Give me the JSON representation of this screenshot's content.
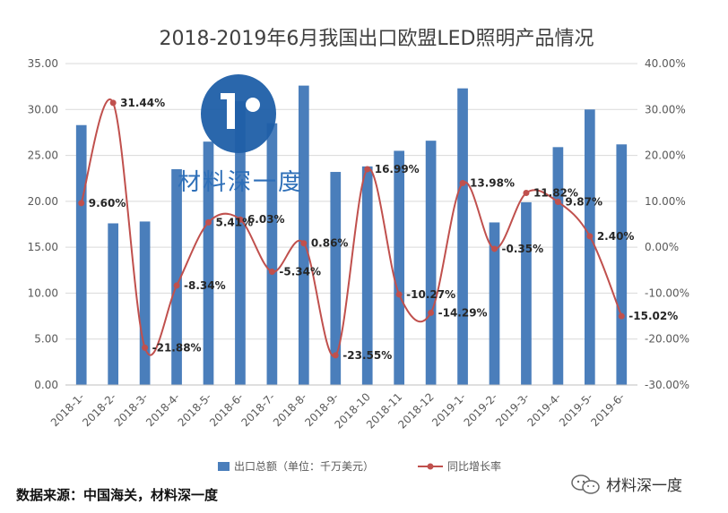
{
  "chart_data": {
    "type": "bar",
    "title": "2018-2019年6月我国出口欧盟LED照明产品情况",
    "categories": [
      "2018-1-",
      "2018-2-",
      "2018-3-",
      "2018-4-",
      "2018-5-",
      "2018-6-",
      "2018-7-",
      "2018-8-",
      "2018-9-",
      "2018-10",
      "2018-11",
      "2018-12",
      "2019-1-",
      "2019-2-",
      "2019-3-",
      "2019-4-",
      "2019-5-",
      "2019-6-"
    ],
    "series": [
      {
        "name": "出口总额（单位：千万美元）",
        "type": "bar",
        "axis": "left",
        "color": "#4a7ebb",
        "values": [
          28.3,
          17.6,
          17.8,
          23.5,
          26.5,
          30.9,
          28.5,
          32.6,
          23.2,
          23.8,
          25.5,
          26.6,
          32.3,
          17.7,
          19.9,
          25.9,
          30.0,
          26.2
        ]
      },
      {
        "name": "同比增长率",
        "type": "line",
        "axis": "right",
        "color": "#c0504d",
        "values": [
          9.6,
          31.44,
          -21.88,
          -8.34,
          5.41,
          6.03,
          -5.34,
          0.86,
          -23.55,
          16.99,
          -10.27,
          -14.29,
          13.98,
          -0.35,
          11.82,
          9.87,
          2.4,
          -15.02
        ],
        "labels": [
          "9.60%",
          "31.44%",
          "-21.88%",
          "-8.34%",
          "5.41%",
          "6.03%",
          "-5.34%",
          "0.86%",
          "-23.55%",
          "16.99%",
          "-10.27%",
          "-14.29%",
          "13.98%",
          "-0.35%",
          "11.82%",
          "9.87%",
          "2.40%",
          "-15.02%"
        ]
      }
    ],
    "ylim_left": [
      0,
      35
    ],
    "yticks_left": [
      "0.00",
      "5.00",
      "10.00",
      "15.00",
      "20.00",
      "25.00",
      "30.00",
      "35.00"
    ],
    "ylim_right": [
      -30,
      40
    ],
    "yticks_right": [
      "-30.00%",
      "-20.00%",
      "-10.00%",
      "0.00%",
      "10.00%",
      "20.00%",
      "30.00%",
      "40.00%"
    ],
    "grid": true,
    "legend_position": "bottom"
  },
  "footer": {
    "source": "数据来源：中国海关，材料深一度"
  },
  "watermark": {
    "center_text": "材料深一度",
    "corner_text": "材料深一度",
    "icon": "wechat-icon",
    "logo": "logo-icon"
  }
}
